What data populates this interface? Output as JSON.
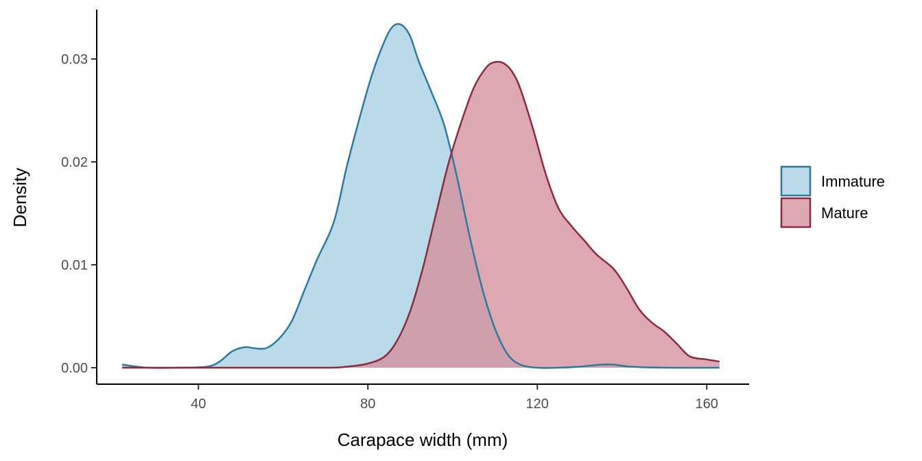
{
  "chart_data": {
    "type": "area",
    "title": "",
    "xlabel": "Carapace width (mm)",
    "ylabel": "Density",
    "xlim": [
      16,
      170
    ],
    "ylim": [
      -0.0016,
      0.0348
    ],
    "x_ticks": [
      40,
      80,
      120,
      160
    ],
    "x_tick_labels": [
      "40",
      "80",
      "120",
      "160"
    ],
    "y_ticks": [
      0.0,
      0.01,
      0.02,
      0.03
    ],
    "y_tick_labels": [
      "0.00",
      "0.01",
      "0.02",
      "0.03"
    ],
    "grid": false,
    "legend_position": "right",
    "series": [
      {
        "name": "Immature",
        "line_color": "#2E7A9C",
        "fill_color": "#A6CEE3",
        "x": [
          22,
          28,
          35,
          42,
          45,
          48,
          51,
          53,
          56,
          59,
          62,
          65,
          68,
          72,
          75,
          78,
          81,
          84,
          86,
          88,
          90,
          92,
          95,
          98,
          101,
          104,
          107,
          110,
          113,
          116,
          120,
          125,
          130,
          135,
          138,
          142,
          150,
          163
        ],
        "y": [
          0.0003,
          0.0,
          0.0,
          0.0001,
          0.0006,
          0.0016,
          0.002,
          0.0019,
          0.0019,
          0.0028,
          0.0045,
          0.0075,
          0.0105,
          0.0142,
          0.0195,
          0.0242,
          0.0285,
          0.0318,
          0.0332,
          0.0333,
          0.0322,
          0.0298,
          0.0268,
          0.0236,
          0.0186,
          0.0128,
          0.0077,
          0.0038,
          0.0013,
          0.0003,
          0.0,
          0.0,
          0.0001,
          0.0003,
          0.0003,
          0.0001,
          0.0,
          0.0
        ]
      },
      {
        "name": "Mature",
        "line_color": "#8B2A3D",
        "fill_color": "#D4909C",
        "x": [
          22,
          50,
          70,
          75,
          80,
          84,
          87,
          90,
          93,
          96,
          99,
          102,
          105,
          108,
          110,
          112,
          114,
          116,
          119,
          122,
          125,
          128,
          131,
          134,
          138,
          141,
          144,
          147,
          150,
          153,
          156,
          160,
          163
        ],
        "y": [
          0.0,
          0.0,
          0.0,
          0.0001,
          0.0004,
          0.0011,
          0.0027,
          0.0055,
          0.0097,
          0.0148,
          0.0198,
          0.0238,
          0.0272,
          0.0292,
          0.0297,
          0.0296,
          0.0288,
          0.0271,
          0.0232,
          0.0188,
          0.0155,
          0.0138,
          0.0124,
          0.011,
          0.0096,
          0.0078,
          0.0057,
          0.0044,
          0.0035,
          0.0023,
          0.0011,
          0.0008,
          0.0006
        ]
      }
    ]
  }
}
